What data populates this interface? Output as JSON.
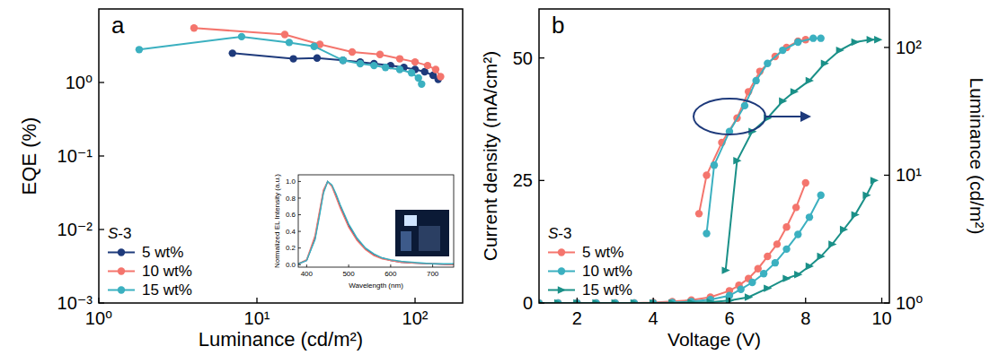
{
  "chart_data": [
    {
      "type": "line",
      "panel_label": "a",
      "x_label": "Luminance (cd/m²)",
      "y_label": "EQE (%)",
      "log": true,
      "xlim": [
        1,
        200
      ],
      "xticks": [
        {
          "value": 1,
          "label": "10⁰"
        },
        {
          "value": 10,
          "label": "10¹"
        },
        {
          "value": 100,
          "label": "10²"
        }
      ],
      "ylim": [
        0.001,
        10
      ],
      "yticks": [
        {
          "value": 0.001,
          "label": "10⁻³"
        },
        {
          "value": 0.01,
          "label": "10⁻²"
        },
        {
          "value": 0.1,
          "label": "10⁻¹"
        },
        {
          "value": 1,
          "label": "10⁰"
        }
      ],
      "legend": "lower left",
      "legend_title": "S-3",
      "marker": "circle",
      "series": [
        {
          "name": "5 wt%",
          "color": "#1e3a7b",
          "x": [
            7,
            17,
            24,
            35,
            45,
            55,
            70,
            85,
            100,
            115,
            130,
            140
          ],
          "values": [
            2.5,
            2.1,
            2.15,
            2.0,
            1.9,
            1.8,
            1.7,
            1.6,
            1.5,
            1.4,
            1.25,
            1.1
          ]
        },
        {
          "name": "10 wt%",
          "color": "#f4756d",
          "x": [
            4,
            15,
            25,
            40,
            60,
            80,
            100,
            120,
            135,
            145
          ],
          "values": [
            5.5,
            4.5,
            3.3,
            2.6,
            2.4,
            2.1,
            1.9,
            1.7,
            1.5,
            1.2
          ]
        },
        {
          "name": "15 wt%",
          "color": "#3bb0c0",
          "x": [
            1.8,
            8,
            16,
            23,
            35,
            45,
            55,
            65,
            80,
            95,
            105,
            110
          ],
          "values": [
            2.8,
            4.2,
            3.5,
            3.1,
            2.0,
            1.8,
            1.7,
            1.6,
            1.5,
            1.35,
            1.15,
            0.95
          ]
        }
      ]
    },
    {
      "type": "line",
      "x_label": "Wavelength (nm)",
      "y_label": "Normalized EL Intensity (a.u.)",
      "marker": "none",
      "xlim": [
        380,
        750
      ],
      "xticks": [
        400,
        500,
        600,
        700
      ],
      "ylim": [
        -0.03,
        1.08
      ],
      "yticks": [
        {
          "value": 0,
          "label": "0.0"
        },
        {
          "value": 0.2,
          "label": "0.2"
        },
        {
          "value": 0.4,
          "label": "0.4"
        },
        {
          "value": 0.6,
          "label": "0.6"
        },
        {
          "value": 0.8,
          "label": "0.8"
        },
        {
          "value": 1,
          "label": "1.0"
        }
      ],
      "series": [
        {
          "color": "#1e3a7b",
          "x": [
            380,
            400,
            420,
            430,
            440,
            450,
            460,
            470,
            480,
            500,
            520,
            540,
            560,
            580,
            600,
            625,
            650,
            700,
            750
          ],
          "values": [
            0.01,
            0.05,
            0.32,
            0.6,
            0.88,
            1.0,
            0.95,
            0.83,
            0.7,
            0.47,
            0.3,
            0.19,
            0.12,
            0.08,
            0.05,
            0.03,
            0.02,
            0.01,
            0.0
          ]
        },
        {
          "color": "#f4756d",
          "x": [
            380,
            400,
            420,
            430,
            440,
            450,
            460,
            470,
            480,
            500,
            520,
            540,
            560,
            580,
            600,
            625,
            650,
            700,
            750
          ],
          "values": [
            0.01,
            0.06,
            0.35,
            0.63,
            0.9,
            1.0,
            0.94,
            0.81,
            0.68,
            0.45,
            0.29,
            0.18,
            0.11,
            0.07,
            0.05,
            0.03,
            0.02,
            0.01,
            0.0
          ]
        },
        {
          "color": "#3bb0c0",
          "x": [
            380,
            400,
            420,
            430,
            440,
            450,
            460,
            470,
            480,
            500,
            520,
            540,
            560,
            580,
            600,
            625,
            650,
            700,
            750
          ],
          "values": [
            0.01,
            0.05,
            0.3,
            0.57,
            0.86,
            1.0,
            0.96,
            0.85,
            0.72,
            0.49,
            0.32,
            0.2,
            0.13,
            0.08,
            0.06,
            0.04,
            0.03,
            0.01,
            0.01
          ]
        }
      ]
    },
    {
      "type": "line",
      "panel_label": "b",
      "x_label": "Voltage (V)",
      "y_label": "Current density (mA/cm²)",
      "y2_label": "Luminance (cd/m²)",
      "log": "y2",
      "xlim": [
        1,
        10.2
      ],
      "xticks": [
        2,
        4,
        6,
        8,
        10
      ],
      "ylim": [
        0,
        60
      ],
      "yticks": [
        0,
        25,
        50
      ],
      "y2lim": [
        1,
        200
      ],
      "y2ticks": [
        {
          "value": 1,
          "label": "10⁰"
        },
        {
          "value": 10,
          "label": "10¹"
        },
        {
          "value": 100,
          "label": "10²"
        }
      ],
      "legend": "lower left",
      "legend_title": "S-3",
      "series": [
        {
          "name": "5 wt%",
          "color": "#f4756d",
          "marker": "circle",
          "x": [
            1,
            1.5,
            2,
            2.5,
            3,
            3.5,
            4,
            4.5,
            5,
            5.5,
            6,
            6.25,
            6.5,
            6.75,
            7,
            7.25,
            7.5,
            7.75,
            8
          ],
          "values": [
            0,
            0,
            0,
            0,
            0,
            0,
            0.1,
            0.3,
            0.6,
            1.2,
            2.5,
            3.6,
            5,
            7,
            9.5,
            12,
            15.5,
            19.5,
            24.5
          ]
        },
        {
          "name": "10 wt%",
          "color": "#3bb0c0",
          "marker": "circle",
          "x": [
            1,
            1.5,
            2,
            2.5,
            3,
            3.5,
            4,
            4.5,
            5,
            5.5,
            6,
            6.3,
            6.6,
            6.9,
            7.2,
            7.5,
            7.8,
            8.1,
            8.4
          ],
          "values": [
            0,
            0,
            0,
            0,
            0,
            0,
            0,
            0.1,
            0.3,
            0.7,
            1.5,
            2.8,
            4.2,
            6,
            8.2,
            11,
            14,
            17.5,
            22
          ]
        },
        {
          "name": "15 wt%",
          "color": "#1a9088",
          "marker": "triangle-right",
          "x": [
            1,
            1.5,
            2,
            2.5,
            3,
            3.5,
            4,
            4.5,
            5,
            5.5,
            6,
            6.5,
            7,
            7.5,
            7.8,
            8.1,
            8.4,
            8.7,
            9,
            9.3,
            9.6,
            9.8
          ],
          "values": [
            0,
            0,
            0,
            0,
            0,
            0,
            0,
            0,
            0.1,
            0.2,
            0.5,
            1.2,
            3,
            5,
            5.8,
            7.5,
            9.5,
            12,
            15,
            18,
            22,
            25
          ]
        },
        {
          "name": "5 wt%",
          "color": "#f4756d",
          "marker": "circle",
          "axis": "y2",
          "x": [
            5.2,
            5.4,
            5.8,
            6.2,
            6.5,
            6.8,
            7.2,
            7.5,
            7.8,
            8
          ],
          "values": [
            5,
            10,
            18,
            28,
            45,
            65,
            85,
            100,
            112,
            115
          ]
        },
        {
          "name": "10 wt%",
          "color": "#3bb0c0",
          "marker": "circle",
          "axis": "y2",
          "x": [
            5.4,
            5.6,
            6.0,
            6.4,
            6.7,
            7.0,
            7.4,
            7.8,
            8.2,
            8.4
          ],
          "values": [
            3.5,
            12,
            22,
            35,
            55,
            75,
            95,
            110,
            118,
            118
          ]
        },
        {
          "name": "15 wt%",
          "color": "#1a9088",
          "marker": "triangle-right",
          "axis": "y2",
          "x": [
            5.9,
            6.2,
            6.6,
            7.0,
            7.4,
            7.7,
            8.1,
            8.5,
            8.9,
            9.3,
            9.7,
            9.9
          ],
          "values": [
            1.8,
            13,
            22,
            28,
            38,
            45,
            55,
            75,
            95,
            110,
            115,
            115
          ]
        }
      ]
    }
  ]
}
